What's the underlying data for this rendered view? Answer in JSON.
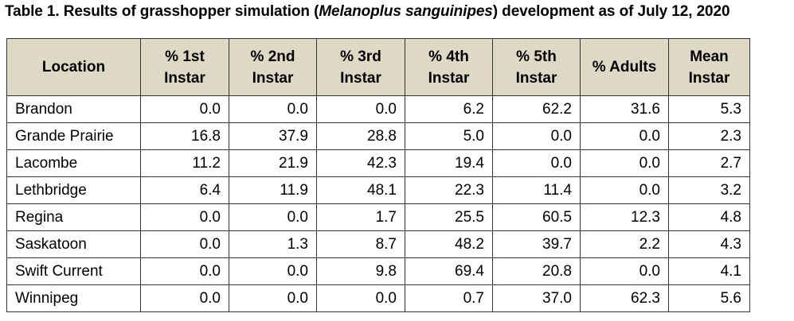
{
  "caption": {
    "prefix": "Table 1. Results of grasshopper simulation (",
    "species": "Melanoplus sanguinipes",
    "suffix": ") development as of July 12, 2020"
  },
  "headers": [
    {
      "line1": "Location",
      "line2": ""
    },
    {
      "line1": "% 1st",
      "line2": "Instar"
    },
    {
      "line1": "% 2nd",
      "line2": "Instar"
    },
    {
      "line1": "% 3rd",
      "line2": "Instar"
    },
    {
      "line1": "% 4th",
      "line2": "Instar"
    },
    {
      "line1": "% 5th",
      "line2": "Instar"
    },
    {
      "line1": "% Adults",
      "line2": ""
    },
    {
      "line1": "Mean",
      "line2": "Instar"
    }
  ],
  "rows": [
    {
      "location": "Brandon",
      "values": [
        "0.0",
        "0.0",
        "0.0",
        "6.2",
        "62.2",
        "31.6",
        "5.3"
      ]
    },
    {
      "location": "Grande Prairie",
      "values": [
        "16.8",
        "37.9",
        "28.8",
        "5.0",
        "0.0",
        "0.0",
        "2.3"
      ]
    },
    {
      "location": "Lacombe",
      "values": [
        "11.2",
        "21.9",
        "42.3",
        "19.4",
        "0.0",
        "0.0",
        "2.7"
      ]
    },
    {
      "location": "Lethbridge",
      "values": [
        "6.4",
        "11.9",
        "48.1",
        "22.3",
        "11.4",
        "0.0",
        "3.2"
      ]
    },
    {
      "location": "Regina",
      "values": [
        "0.0",
        "0.0",
        "1.7",
        "25.5",
        "60.5",
        "12.3",
        "4.8"
      ]
    },
    {
      "location": "Saskatoon",
      "values": [
        "0.0",
        "1.3",
        "8.7",
        "48.2",
        "39.7",
        "2.2",
        "4.3"
      ]
    },
    {
      "location": "Swift Current",
      "values": [
        "0.0",
        "0.0",
        "9.8",
        "69.4",
        "20.8",
        "0.0",
        "4.1"
      ]
    },
    {
      "location": "Winnipeg",
      "values": [
        "0.0",
        "0.0",
        "0.0",
        "0.7",
        "37.0",
        "62.3",
        "5.6"
      ]
    }
  ]
}
